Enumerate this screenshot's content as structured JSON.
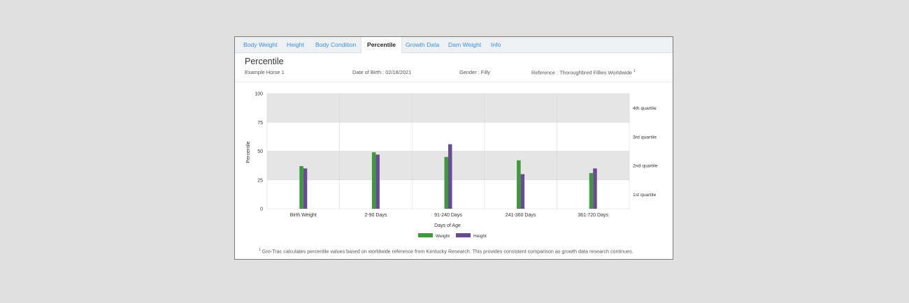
{
  "tabs": [
    {
      "label": "Body Weight"
    },
    {
      "label": "Height"
    },
    {
      "label": "Body Condition"
    },
    {
      "label": "Percentile"
    },
    {
      "label": "Growth Data"
    },
    {
      "label": "Dam Weight"
    },
    {
      "label": "Info"
    }
  ],
  "active_tab": "Percentile",
  "header": {
    "title": "Percentile",
    "horse_name": "Example Horse 1",
    "date_of_birth": "Date of Birth : 02/18/2021",
    "gender": "Gender : Filly",
    "reference": "Reference : Thoroughbred Fillies Worldwide",
    "reference_sup": "1"
  },
  "footnote": {
    "sup": "1",
    "text": "Gro-Trac calculates percentile values based on worldwide reference from Kentucky Research. This provides consistent comparison as growth data research continues."
  },
  "colors": {
    "weight": "#3c9a3c",
    "height": "#6a4a92",
    "band_shaded": "#e5e5e5",
    "tab_link": "#3a8ee0"
  },
  "chart_data": {
    "type": "bar",
    "xlabel": "Days of Age",
    "ylabel": "Percentile",
    "ylim": [
      0,
      100
    ],
    "yticks": [
      "0",
      "25",
      "50",
      "75",
      "100"
    ],
    "categories": [
      "Birth Weight",
      "2-90 Days",
      "91-240 Days",
      "241-360 Days",
      "361-720 Days"
    ],
    "series": [
      {
        "name": "Weight",
        "values": [
          37,
          49,
          45,
          42,
          31
        ]
      },
      {
        "name": "Height",
        "values": [
          35,
          47,
          56,
          30,
          35
        ]
      }
    ],
    "quartile_labels": [
      "1st quartile",
      "2nd quartile",
      "3rd quartile",
      "4th quartile"
    ],
    "shaded_bands": [
      [
        25,
        50
      ],
      [
        75,
        100
      ]
    ],
    "legend_position": "bottom",
    "grid": true
  }
}
